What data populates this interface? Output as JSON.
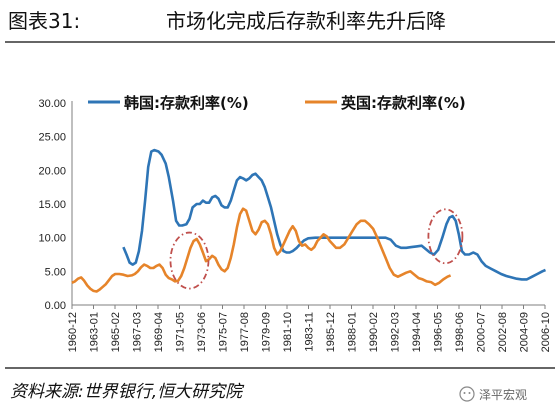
{
  "figure": {
    "label": "图表31:",
    "title": "市场化完成后存款利率先升后降",
    "source": "资料来源:世界银行,恒大研究院",
    "watermark": "泽平宏观"
  },
  "chart_data": {
    "type": "line",
    "title": "市场化完成后存款利率先升后降",
    "xlabel": "",
    "ylabel": "",
    "ylim": [
      0,
      30
    ],
    "yticks": [
      "0.00",
      "5.00",
      "10.00",
      "15.00",
      "20.00",
      "25.00",
      "30.00"
    ],
    "categories": [
      "1960-12",
      "1963-01",
      "1965-02",
      "1967-03",
      "1969-04",
      "1971-05",
      "1973-06",
      "1975-07",
      "1977-08",
      "1979-09",
      "1981-10",
      "1983-11",
      "1985-12",
      "1988-01",
      "1990-02",
      "1992-03",
      "1994-04",
      "1996-05",
      "1998-06",
      "2000-07",
      "2002-08",
      "2004-09",
      "2006-10"
    ],
    "grid": false,
    "legend_position": "top",
    "series": [
      {
        "name": "韩国:存款利率(%)",
        "color": "#2e75b6",
        "points": [
          [
            1965.9,
            8.6
          ],
          [
            1966.2,
            7.5
          ],
          [
            1966.5,
            6.3
          ],
          [
            1966.8,
            6.0
          ],
          [
            1967.1,
            6.3
          ],
          [
            1967.4,
            8.0
          ],
          [
            1967.7,
            11.0
          ],
          [
            1968.0,
            15.5
          ],
          [
            1968.3,
            20.5
          ],
          [
            1968.6,
            22.8
          ],
          [
            1968.9,
            23.0
          ],
          [
            1969.3,
            22.8
          ],
          [
            1969.6,
            22.3
          ],
          [
            1970.0,
            21.0
          ],
          [
            1970.3,
            19.0
          ],
          [
            1970.7,
            15.5
          ],
          [
            1971.0,
            12.5
          ],
          [
            1971.3,
            11.8
          ],
          [
            1971.6,
            11.8
          ],
          [
            1972.0,
            12.0
          ],
          [
            1972.3,
            12.8
          ],
          [
            1972.6,
            14.5
          ],
          [
            1973.0,
            15.0
          ],
          [
            1973.3,
            15.0
          ],
          [
            1973.6,
            15.5
          ],
          [
            1973.9,
            15.2
          ],
          [
            1974.2,
            15.2
          ],
          [
            1974.5,
            16.0
          ],
          [
            1974.8,
            16.2
          ],
          [
            1975.1,
            15.8
          ],
          [
            1975.4,
            14.8
          ],
          [
            1975.7,
            14.5
          ],
          [
            1976.0,
            14.5
          ],
          [
            1976.3,
            15.5
          ],
          [
            1976.6,
            17.0
          ],
          [
            1976.9,
            18.5
          ],
          [
            1977.2,
            19.0
          ],
          [
            1977.5,
            18.8
          ],
          [
            1977.8,
            18.5
          ],
          [
            1978.1,
            18.8
          ],
          [
            1978.4,
            19.3
          ],
          [
            1978.7,
            19.5
          ],
          [
            1979.0,
            19.0
          ],
          [
            1979.3,
            18.5
          ],
          [
            1979.6,
            17.5
          ],
          [
            1979.9,
            16.0
          ],
          [
            1980.2,
            14.5
          ],
          [
            1980.5,
            12.5
          ],
          [
            1980.8,
            10.5
          ],
          [
            1981.1,
            9.0
          ],
          [
            1981.4,
            8.0
          ],
          [
            1981.7,
            7.8
          ],
          [
            1982.0,
            7.8
          ],
          [
            1982.3,
            8.0
          ],
          [
            1982.7,
            8.5
          ],
          [
            1983.0,
            9.0
          ],
          [
            1983.4,
            9.6
          ],
          [
            1983.8,
            9.9
          ],
          [
            1984.5,
            10.0
          ],
          [
            1985.5,
            10.0
          ],
          [
            1986.5,
            10.0
          ],
          [
            1987.5,
            10.0
          ],
          [
            1988.5,
            10.0
          ],
          [
            1989.5,
            10.0
          ],
          [
            1990.5,
            10.0
          ],
          [
            1991.3,
            10.0
          ],
          [
            1991.8,
            9.7
          ],
          [
            1992.3,
            8.8
          ],
          [
            1992.8,
            8.5
          ],
          [
            1993.3,
            8.5
          ],
          [
            1993.8,
            8.6
          ],
          [
            1994.3,
            8.7
          ],
          [
            1994.8,
            8.8
          ],
          [
            1995.2,
            8.3
          ],
          [
            1995.6,
            7.8
          ],
          [
            1996.0,
            7.5
          ],
          [
            1996.4,
            8.2
          ],
          [
            1996.8,
            10.0
          ],
          [
            1997.2,
            12.0
          ],
          [
            1997.5,
            13.0
          ],
          [
            1997.8,
            13.2
          ],
          [
            1998.1,
            12.5
          ],
          [
            1998.4,
            10.5
          ],
          [
            1998.7,
            8.0
          ],
          [
            1999.0,
            7.5
          ],
          [
            1999.4,
            7.5
          ],
          [
            1999.8,
            7.8
          ],
          [
            2000.2,
            7.5
          ],
          [
            2000.6,
            6.5
          ],
          [
            2001.0,
            5.8
          ],
          [
            2001.5,
            5.4
          ],
          [
            2002.0,
            5.0
          ],
          [
            2002.5,
            4.6
          ],
          [
            2003.0,
            4.3
          ],
          [
            2003.5,
            4.1
          ],
          [
            2004.0,
            3.9
          ],
          [
            2004.5,
            3.8
          ],
          [
            2005.0,
            3.8
          ],
          [
            2005.5,
            4.2
          ],
          [
            2006.0,
            4.6
          ],
          [
            2006.5,
            5.0
          ],
          [
            2006.8,
            5.2
          ]
        ]
      },
      {
        "name": "英国:存款利率(%)",
        "color": "#e6842a",
        "points": [
          [
            1960.9,
            3.3
          ],
          [
            1961.2,
            3.5
          ],
          [
            1961.5,
            3.9
          ],
          [
            1961.8,
            4.1
          ],
          [
            1962.1,
            3.6
          ],
          [
            1962.4,
            2.9
          ],
          [
            1962.7,
            2.4
          ],
          [
            1963.0,
            2.1
          ],
          [
            1963.3,
            2.0
          ],
          [
            1963.6,
            2.3
          ],
          [
            1963.9,
            2.7
          ],
          [
            1964.2,
            3.1
          ],
          [
            1964.5,
            3.7
          ],
          [
            1964.8,
            4.3
          ],
          [
            1965.1,
            4.6
          ],
          [
            1965.5,
            4.6
          ],
          [
            1965.9,
            4.5
          ],
          [
            1966.3,
            4.3
          ],
          [
            1966.7,
            4.4
          ],
          [
            1967.0,
            4.6
          ],
          [
            1967.3,
            5.0
          ],
          [
            1967.6,
            5.6
          ],
          [
            1967.9,
            6.0
          ],
          [
            1968.2,
            5.8
          ],
          [
            1968.5,
            5.5
          ],
          [
            1968.8,
            5.5
          ],
          [
            1969.1,
            5.8
          ],
          [
            1969.4,
            6.0
          ],
          [
            1969.7,
            5.5
          ],
          [
            1970.0,
            4.5
          ],
          [
            1970.3,
            4.0
          ],
          [
            1970.6,
            3.8
          ],
          [
            1970.9,
            3.5
          ],
          [
            1971.2,
            3.6
          ],
          [
            1971.5,
            4.3
          ],
          [
            1971.8,
            5.5
          ],
          [
            1972.1,
            7.0
          ],
          [
            1972.4,
            8.5
          ],
          [
            1972.7,
            9.5
          ],
          [
            1973.0,
            9.8
          ],
          [
            1973.3,
            9.0
          ],
          [
            1973.6,
            7.8
          ],
          [
            1973.9,
            6.5
          ],
          [
            1974.2,
            6.8
          ],
          [
            1974.5,
            7.3
          ],
          [
            1974.8,
            7.0
          ],
          [
            1975.1,
            6.0
          ],
          [
            1975.4,
            5.3
          ],
          [
            1975.7,
            5.0
          ],
          [
            1976.0,
            5.5
          ],
          [
            1976.3,
            7.0
          ],
          [
            1976.6,
            9.0
          ],
          [
            1976.9,
            11.5
          ],
          [
            1977.2,
            13.5
          ],
          [
            1977.5,
            14.3
          ],
          [
            1977.8,
            14.0
          ],
          [
            1978.1,
            12.5
          ],
          [
            1978.4,
            11.0
          ],
          [
            1978.7,
            10.5
          ],
          [
            1979.0,
            11.2
          ],
          [
            1979.3,
            12.3
          ],
          [
            1979.6,
            12.5
          ],
          [
            1979.9,
            12.0
          ],
          [
            1980.2,
            10.5
          ],
          [
            1980.5,
            8.5
          ],
          [
            1980.8,
            7.5
          ],
          [
            1981.1,
            8.0
          ],
          [
            1981.4,
            9.0
          ],
          [
            1981.7,
            10.0
          ],
          [
            1982.0,
            11.0
          ],
          [
            1982.3,
            11.7
          ],
          [
            1982.6,
            11.0
          ],
          [
            1982.9,
            9.5
          ],
          [
            1983.2,
            8.8
          ],
          [
            1983.5,
            9.0
          ],
          [
            1983.8,
            8.5
          ],
          [
            1984.1,
            8.2
          ],
          [
            1984.4,
            8.6
          ],
          [
            1984.7,
            9.5
          ],
          [
            1985.0,
            10.0
          ],
          [
            1985.3,
            10.5
          ],
          [
            1985.6,
            10.2
          ],
          [
            1985.9,
            9.5
          ],
          [
            1986.2,
            9.0
          ],
          [
            1986.5,
            8.5
          ],
          [
            1986.9,
            8.5
          ],
          [
            1987.3,
            9.0
          ],
          [
            1987.7,
            10.0
          ],
          [
            1988.1,
            11.0
          ],
          [
            1988.5,
            12.0
          ],
          [
            1988.9,
            12.5
          ],
          [
            1989.3,
            12.5
          ],
          [
            1989.7,
            12.0
          ],
          [
            1990.1,
            11.3
          ],
          [
            1990.5,
            10.0
          ],
          [
            1990.9,
            8.5
          ],
          [
            1991.3,
            7.0
          ],
          [
            1991.7,
            5.5
          ],
          [
            1992.1,
            4.5
          ],
          [
            1992.5,
            4.2
          ],
          [
            1992.9,
            4.5
          ],
          [
            1993.3,
            4.8
          ],
          [
            1993.7,
            5.0
          ],
          [
            1994.1,
            4.5
          ],
          [
            1994.5,
            4.0
          ],
          [
            1994.9,
            3.8
          ],
          [
            1995.3,
            3.5
          ],
          [
            1995.7,
            3.4
          ],
          [
            1996.1,
            3.0
          ],
          [
            1996.5,
            3.3
          ],
          [
            1996.9,
            3.8
          ],
          [
            1997.3,
            4.2
          ],
          [
            1997.6,
            4.4
          ]
        ]
      }
    ],
    "annotations": [
      {
        "type": "dashed-ellipse",
        "color": "#c0504d",
        "around": "韩国:存款利率(%)",
        "period": "1996-05 – 1998-06"
      },
      {
        "type": "dashed-ellipse",
        "color": "#c0504d",
        "around": "英国:存款利率(%)",
        "period": "1971-05 – 1973-06"
      }
    ]
  }
}
